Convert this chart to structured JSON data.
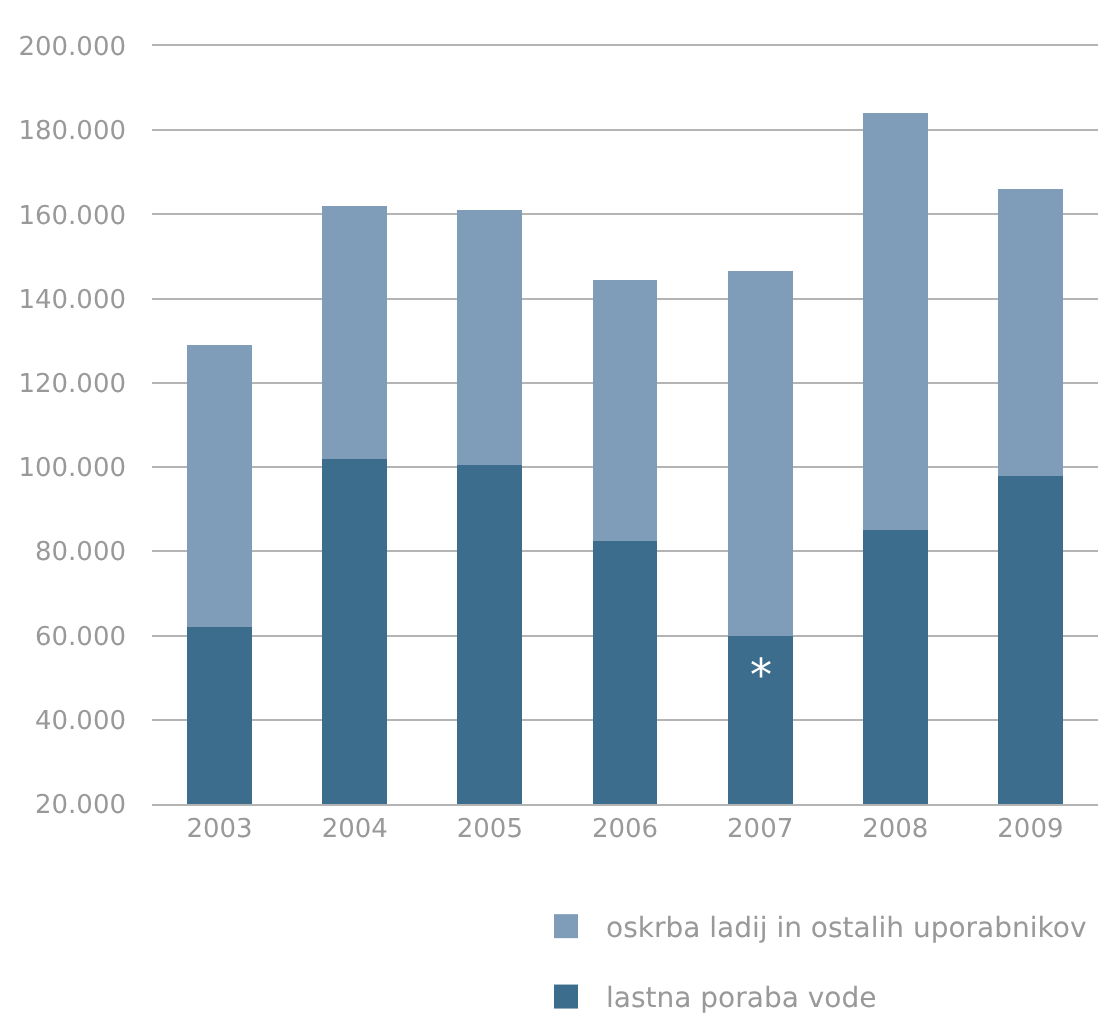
{
  "chart_data": {
    "type": "bar",
    "stacked": true,
    "categories": [
      "2003",
      "2004",
      "2005",
      "2006",
      "2007",
      "2008",
      "2009"
    ],
    "series": [
      {
        "name": "lastna poraba vode",
        "color": "#3c6d8d",
        "values": [
          62000,
          102000,
          100500,
          82500,
          60000,
          85000,
          98000
        ]
      },
      {
        "name": "oskrba ladij in ostalih uporabnikov",
        "color": "#7f9db8",
        "values": [
          67000,
          60000,
          60500,
          62000,
          86500,
          99000,
          68000
        ]
      }
    ],
    "ylim": [
      20000,
      200000
    ],
    "yticks": [
      {
        "value": 20000,
        "label": "20.000"
      },
      {
        "value": 40000,
        "label": "40.000"
      },
      {
        "value": 60000,
        "label": "60.000"
      },
      {
        "value": 80000,
        "label": "80.000"
      },
      {
        "value": 100000,
        "label": "100.000"
      },
      {
        "value": 120000,
        "label": "120.000"
      },
      {
        "value": 140000,
        "label": "140.000"
      },
      {
        "value": 160000,
        "label": "160.000"
      },
      {
        "value": 180000,
        "label": "180.000"
      },
      {
        "value": 200000,
        "label": "200.000"
      }
    ],
    "grid": "y",
    "legend": "bottom right",
    "annotations": [
      {
        "text": "*",
        "x": "2007",
        "y": 60000
      }
    ]
  }
}
